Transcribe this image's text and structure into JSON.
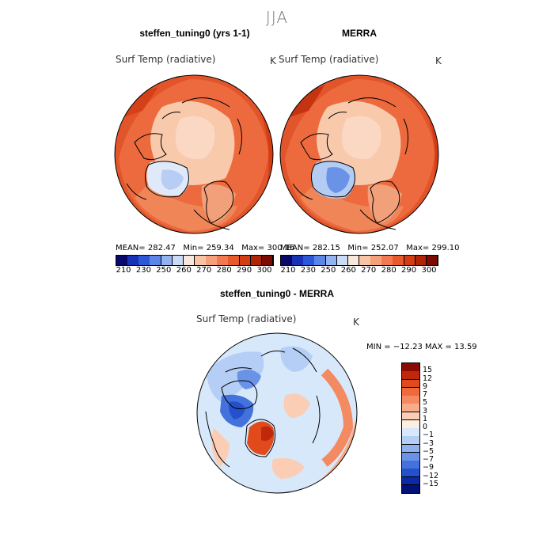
{
  "season": "JJA",
  "top_left": {
    "title": "steffen_tuning0 (yrs 1-1)",
    "variable": "Surf Temp (radiative)",
    "units": "K",
    "stats": {
      "mean": "282.47",
      "min": "259.34",
      "max": "300.16"
    },
    "stats_labels": {
      "mean": "MEAN=",
      "min": "Min=",
      "max": "Max="
    }
  },
  "top_right": {
    "title": "MERRA",
    "variable": "Surf Temp (radiative)",
    "units": "K",
    "stats": {
      "mean": "282.15",
      "min": "252.07",
      "max": "299.10"
    },
    "stats_labels": {
      "mean": "MEAN=",
      "min": "Min=",
      "max": "Max="
    }
  },
  "bottom": {
    "title": "steffen_tuning0 - MERRA",
    "variable": "Surf Temp (radiative)",
    "units": "K",
    "minmax_text": "MIN = −12.23 MAX =  13.59"
  },
  "chart_data": [
    {
      "type": "heatmap",
      "projection": "north-polar-stereographic",
      "title": "steffen_tuning0 (yrs 1-1)",
      "variable": "Surf Temp (radiative)",
      "units": "K",
      "mean": 282.47,
      "min": 259.34,
      "max": 300.16,
      "colorbar_ticks": [
        "210",
        "230",
        "250",
        "260",
        "270",
        "280",
        "290",
        "300"
      ],
      "colors": [
        "#08086b",
        "#1732b4",
        "#2e56d8",
        "#5b86e8",
        "#93b3f0",
        "#c9dbf7",
        "#f8e8dc",
        "#f9c4a5",
        "#f6a07a",
        "#f27a50",
        "#e85a2c",
        "#d43c14",
        "#b02408",
        "#7c0a02"
      ]
    },
    {
      "type": "heatmap",
      "projection": "north-polar-stereographic",
      "title": "MERRA",
      "variable": "Surf Temp (radiative)",
      "units": "K",
      "mean": 282.15,
      "min": 252.07,
      "max": 299.1,
      "colorbar_ticks": [
        "210",
        "230",
        "250",
        "260",
        "270",
        "280",
        "290",
        "300"
      ],
      "colors": [
        "#08086b",
        "#1732b4",
        "#2e56d8",
        "#5b86e8",
        "#93b3f0",
        "#c9dbf7",
        "#f8e8dc",
        "#f9c4a5",
        "#f6a07a",
        "#f27a50",
        "#e85a2c",
        "#d43c14",
        "#b02408",
        "#7c0a02"
      ]
    },
    {
      "type": "heatmap",
      "projection": "north-polar-stereographic",
      "title": "steffen_tuning0 - MERRA",
      "variable": "Surf Temp (radiative)",
      "units": "K",
      "min": -12.23,
      "max": 13.59,
      "colorbar_ticks": [
        "15",
        "12",
        "9",
        "7",
        "5",
        "3",
        "1",
        "0",
        "−1",
        "−3",
        "−5",
        "−7",
        "−9",
        "−12",
        "−15"
      ],
      "colors": [
        "#8c0a04",
        "#c0280c",
        "#e04a1c",
        "#ee6a3c",
        "#f48a62",
        "#f8ac8a",
        "#fbcdb4",
        "#fdeedf",
        "#d8e8fb",
        "#b4cef6",
        "#8eb1ef",
        "#6a92e6",
        "#4472dc",
        "#2450cc",
        "#0c2aa6",
        "#02107a"
      ]
    }
  ]
}
